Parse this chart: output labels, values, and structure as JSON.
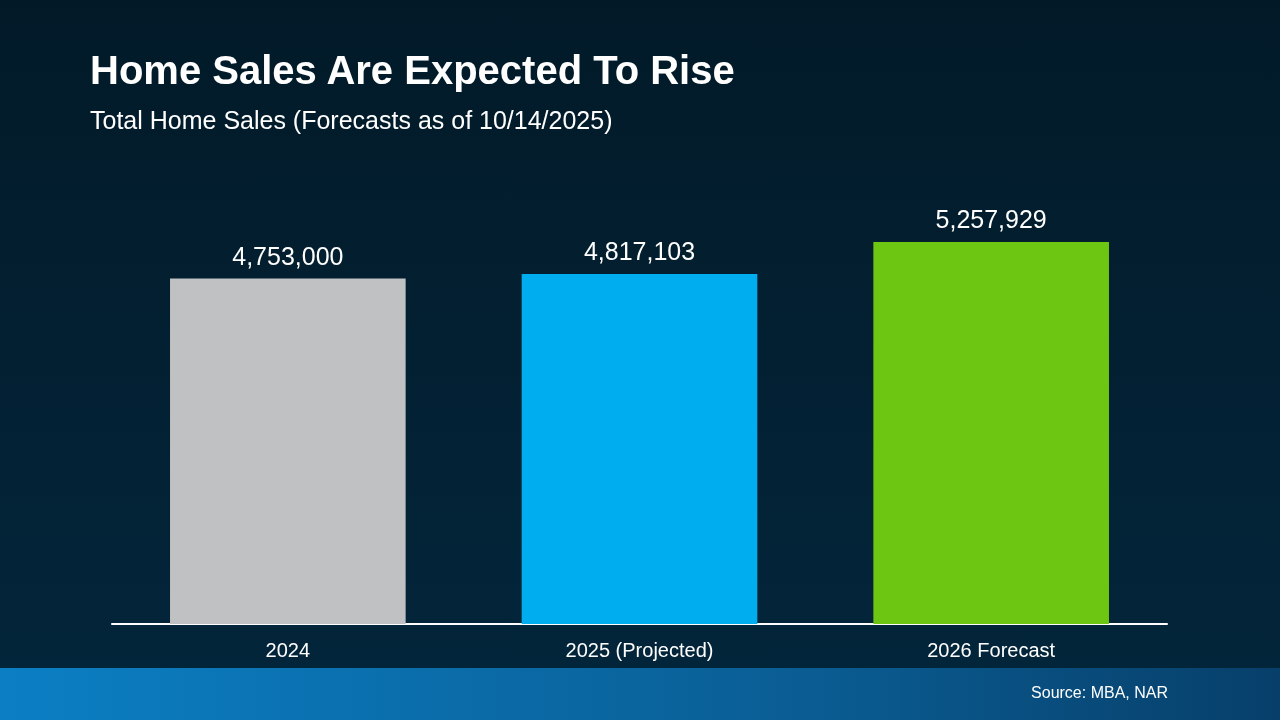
{
  "chart_data": {
    "type": "bar",
    "title": "Home Sales Are Expected To Rise",
    "subtitle": "Total Home Sales (Forecasts as of 10/14/2025)",
    "categories": [
      "2024",
      "2025 (Projected)",
      "2026 Forecast"
    ],
    "values": [
      4753000,
      4817103,
      5257929
    ],
    "value_labels": [
      "4,753,000",
      "4,817,103",
      "5,257,929"
    ],
    "colors": [
      "#bfc1c2",
      "#00adee",
      "#6cc612"
    ],
    "annotations": [
      "Source: MBA, NAR"
    ]
  }
}
